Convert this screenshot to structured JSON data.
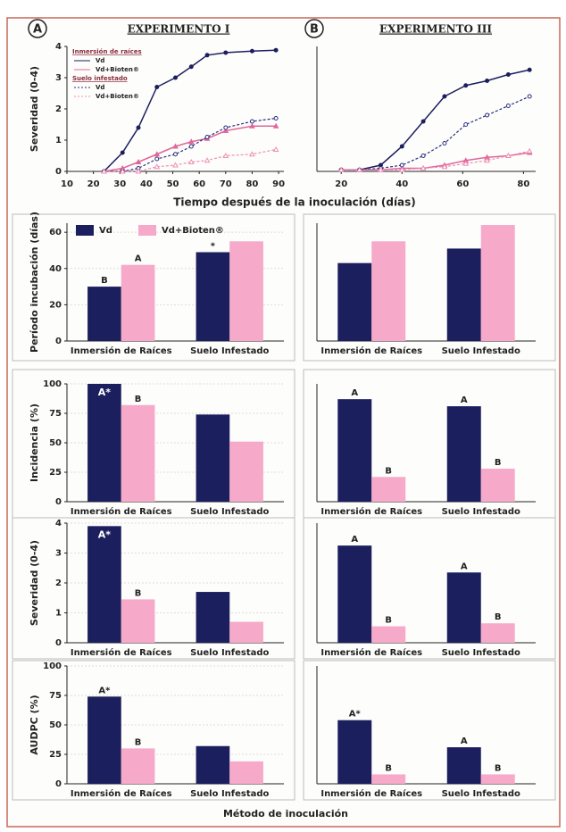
{
  "panels": [
    {
      "letter": "A",
      "title": "EXPERIMENTO I"
    },
    {
      "letter": "B",
      "title": "EXPERIMENTO III"
    }
  ],
  "time_axis_label": "Tiempo después de la inoculación (días)",
  "method_axis_label": "Método de inoculación",
  "chart_data": [
    {
      "type": "line",
      "ylabel": "Severidad (0-4)",
      "xlim": [
        10,
        92
      ],
      "ylim": [
        0,
        4
      ],
      "xticks": [
        10,
        20,
        30,
        40,
        50,
        60,
        70,
        80,
        90
      ],
      "yticks": [
        0,
        1,
        2,
        3,
        4
      ],
      "legend": "top-left",
      "x": [
        24,
        31,
        37,
        44,
        51,
        57,
        63,
        70,
        80,
        89
      ],
      "groups": [
        {
          "name": "Inmersión de raíces",
          "series": [
            {
              "name": "Vd",
              "color": "#1c1f5e",
              "dash": false,
              "marker": "circle",
              "values": [
                0,
                0.6,
                1.4,
                2.7,
                3.0,
                3.35,
                3.72,
                3.8,
                3.85,
                3.88
              ]
            },
            {
              "name": "Vd+Bioten®",
              "color": "#e0679a",
              "dash": false,
              "marker": "triangle",
              "values": [
                0,
                0.1,
                0.3,
                0.55,
                0.8,
                0.95,
                1.05,
                1.3,
                1.45,
                1.45
              ]
            }
          ]
        },
        {
          "name": "Suelo infestado",
          "series": [
            {
              "name": "Vd",
              "color": "#2a2f80",
              "dash": true,
              "marker": "circle",
              "values": [
                0,
                0,
                0.1,
                0.4,
                0.55,
                0.8,
                1.1,
                1.4,
                1.6,
                1.7
              ]
            },
            {
              "name": "Vd+Bioten®",
              "color": "#ee8fb6",
              "dash": true,
              "marker": "triangle",
              "values": [
                0,
                0,
                0,
                0.15,
                0.2,
                0.3,
                0.35,
                0.5,
                0.55,
                0.7
              ]
            }
          ]
        }
      ]
    },
    {
      "type": "line",
      "xlim": [
        12,
        84
      ],
      "ylim": [
        0,
        4
      ],
      "xticks": [
        20,
        40,
        60,
        80
      ],
      "x": [
        20,
        26,
        33,
        40,
        47,
        54,
        61,
        68,
        75,
        82
      ],
      "groups": [
        {
          "series": [
            {
              "color": "#1c1f5e",
              "dash": false,
              "marker": "circle",
              "values": [
                0.05,
                0.05,
                0.2,
                0.8,
                1.6,
                2.4,
                2.75,
                2.9,
                3.1,
                3.25
              ]
            },
            {
              "color": "#e0679a",
              "dash": false,
              "marker": "triangle",
              "values": [
                0.05,
                0.05,
                0.05,
                0.1,
                0.1,
                0.2,
                0.35,
                0.45,
                0.5,
                0.6
              ]
            },
            {
              "color": "#2a2f80",
              "dash": true,
              "marker": "circle",
              "values": [
                0.05,
                0.05,
                0.1,
                0.2,
                0.5,
                0.9,
                1.5,
                1.8,
                2.1,
                2.4
              ]
            },
            {
              "color": "#ee8fb6",
              "dash": true,
              "marker": "triangle",
              "values": [
                0.05,
                0.05,
                0.05,
                0.05,
                0.1,
                0.15,
                0.25,
                0.35,
                0.5,
                0.65
              ]
            }
          ]
        }
      ]
    },
    {
      "type": "bar",
      "ylabel": "Período incubación (días)",
      "ylim": [
        0,
        65
      ],
      "yticks": [
        0,
        20,
        40,
        60
      ],
      "legend": "top-left",
      "categories": [
        "Inmersión de Raíces",
        "Suelo Infestado"
      ],
      "series": [
        {
          "name": "Vd",
          "color": "#1c1f5e",
          "values": [
            30,
            49
          ],
          "letters": [
            "B",
            "*"
          ]
        },
        {
          "name": "Vd+Bioten®",
          "color": "#f6a9c9",
          "values": [
            42,
            55
          ],
          "letters": [
            "A",
            null
          ]
        }
      ]
    },
    {
      "type": "bar",
      "ylim": [
        0,
        65
      ],
      "categories": [
        "Inmersión de Raíces",
        "Suelo Infestado"
      ],
      "series": [
        {
          "color": "#1c1f5e",
          "values": [
            43,
            51
          ]
        },
        {
          "color": "#f6a9c9",
          "values": [
            55,
            64
          ]
        }
      ]
    },
    {
      "type": "bar",
      "ylabel": "Incidencia (%)",
      "ylim": [
        0,
        100
      ],
      "yticks": [
        0,
        25,
        50,
        75,
        100
      ],
      "categories": [
        "Inmersión de Raíces",
        "Suelo Infestado"
      ],
      "series": [
        {
          "color": "#1c1f5e",
          "values": [
            100,
            74
          ],
          "letters": [
            "A*",
            null
          ]
        },
        {
          "color": "#f6a9c9",
          "values": [
            82,
            51
          ],
          "letters": [
            "B",
            null
          ]
        }
      ]
    },
    {
      "type": "bar",
      "ylim": [
        0,
        100
      ],
      "categories": [
        "Inmersión de Raíces",
        "Suelo Infestado"
      ],
      "series": [
        {
          "color": "#1c1f5e",
          "values": [
            87,
            81
          ],
          "letters": [
            "A",
            "A"
          ]
        },
        {
          "color": "#f6a9c9",
          "values": [
            21,
            28
          ],
          "letters": [
            "B",
            "B"
          ]
        }
      ]
    },
    {
      "type": "bar",
      "ylabel": "Severidad (0-4)",
      "ylim": [
        0,
        4
      ],
      "yticks": [
        0,
        1,
        2,
        3,
        4
      ],
      "categories": [
        "Inmersión de Raíces",
        "Suelo Infestado"
      ],
      "series": [
        {
          "color": "#1c1f5e",
          "values": [
            3.9,
            1.7
          ],
          "letters": [
            "A*",
            null
          ]
        },
        {
          "color": "#f6a9c9",
          "values": [
            1.45,
            0.7
          ],
          "letters": [
            "B",
            null
          ]
        }
      ]
    },
    {
      "type": "bar",
      "ylim": [
        0,
        4
      ],
      "categories": [
        "Inmersión de Raíces",
        "Suelo Infestado"
      ],
      "series": [
        {
          "color": "#1c1f5e",
          "values": [
            3.25,
            2.35
          ],
          "letters": [
            "A",
            "A"
          ]
        },
        {
          "color": "#f6a9c9",
          "values": [
            0.55,
            0.65
          ],
          "letters": [
            "B",
            "B"
          ]
        }
      ]
    },
    {
      "type": "bar",
      "ylabel": "AUDPC (%)",
      "ylim": [
        0,
        100
      ],
      "yticks": [
        0,
        25,
        50,
        75,
        100
      ],
      "categories": [
        "Inmersión de Raíces",
        "Suelo Infestado"
      ],
      "series": [
        {
          "color": "#1c1f5e",
          "values": [
            74,
            32
          ],
          "letters": [
            "A*",
            null
          ]
        },
        {
          "color": "#f6a9c9",
          "values": [
            30,
            19
          ],
          "letters": [
            "B",
            null
          ]
        }
      ]
    },
    {
      "type": "bar",
      "ylim": [
        0,
        100
      ],
      "categories": [
        "Inmersión de Raíces",
        "Suelo Infestado"
      ],
      "series": [
        {
          "color": "#1c1f5e",
          "values": [
            54,
            31
          ],
          "letters": [
            "A*",
            "A"
          ]
        },
        {
          "color": "#f6a9c9",
          "values": [
            8,
            8
          ],
          "letters": [
            "B",
            "B"
          ]
        }
      ]
    }
  ]
}
